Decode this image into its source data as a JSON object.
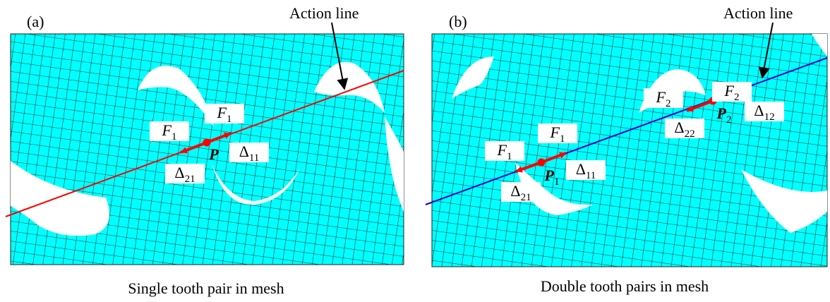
{
  "panels": [
    {
      "tag": "(a)",
      "action_line": "Action line",
      "caption": "Single tooth pair in mesh",
      "labels": [
        {
          "symbol": "F",
          "sub": "1"
        },
        {
          "symbol": "F",
          "sub": "1"
        },
        {
          "symbol": "Δ",
          "sub": "21"
        },
        {
          "symbol": "Δ",
          "sub": "11"
        },
        {
          "symbol": "P",
          "sub": ""
        }
      ]
    },
    {
      "tag": "(b)",
      "action_line": "Action line",
      "caption": "Double tooth pairs in mesh",
      "labels": [
        {
          "symbol": "F",
          "sub": "1"
        },
        {
          "symbol": "F",
          "sub": "1"
        },
        {
          "symbol": "Δ",
          "sub": "21"
        },
        {
          "symbol": "Δ",
          "sub": "11"
        },
        {
          "symbol": "P",
          "sub": "1"
        },
        {
          "symbol": "F",
          "sub": "2"
        },
        {
          "symbol": "F",
          "sub": "2"
        },
        {
          "symbol": "Δ",
          "sub": "22"
        },
        {
          "symbol": "Δ",
          "sub": "12"
        },
        {
          "symbol": "P",
          "sub": "2"
        }
      ]
    }
  ]
}
